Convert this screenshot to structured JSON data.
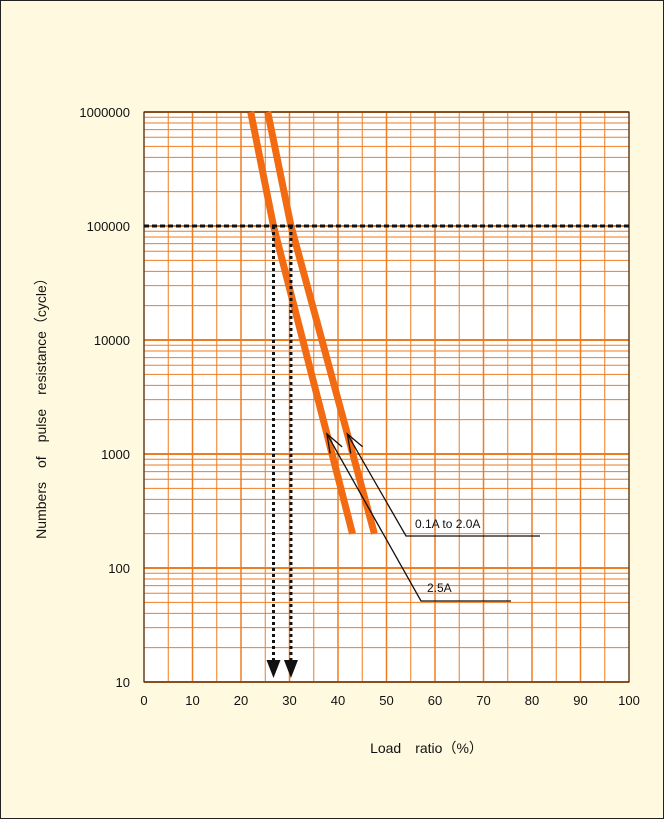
{
  "chart_data": {
    "type": "line",
    "xlabel": "Load　ratio（%）",
    "ylabel": "Numbers　of　pulse　resistance（cycle）",
    "xlim": [
      0,
      100
    ],
    "ylim": [
      10,
      1000000
    ],
    "y_scale": "log",
    "x_ticks": [
      "0",
      "10",
      "20",
      "30",
      "40",
      "50",
      "60",
      "70",
      "80",
      "90",
      "100"
    ],
    "y_ticks": [
      "10",
      "100",
      "1000",
      "10000",
      "100000",
      "1000000"
    ],
    "grid": true,
    "reference_line": {
      "y": 100000
    },
    "drop_arrows_x": [
      26.7,
      30.3
    ],
    "series": [
      {
        "name": "2.5A",
        "x": [
          22.0,
          26.7,
          43.0
        ],
        "y": [
          1000000,
          100000,
          200
        ]
      },
      {
        "name": "0.1A to 2.0A",
        "x": [
          25.5,
          30.3,
          47.5
        ],
        "y": [
          1000000,
          100000,
          200
        ]
      }
    ],
    "colors": {
      "background": "#fff9df",
      "plot_background": "#ffffff",
      "grid": "#ee7d22",
      "series": "#f26b12",
      "reference": "#111111"
    }
  }
}
